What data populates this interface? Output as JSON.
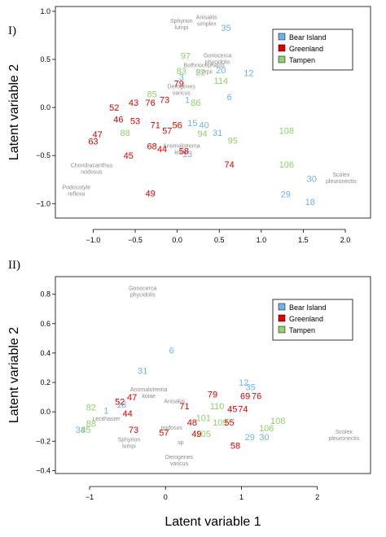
{
  "colors": {
    "Bear Island": "#6fb3e6",
    "Greenland": "#e00000",
    "Tampen": "#8fd16a",
    "species": "#8c8c8c"
  },
  "chart_data": [
    {
      "type": "scatter",
      "panel_label": "I)",
      "ylabel": "Latent variable 2",
      "xlabel": "",
      "xlim": [
        -1.45,
        2.3
      ],
      "ylim": [
        -1.15,
        1.05
      ],
      "xticks": [
        "−1.0",
        "−0.5",
        "0.0",
        "0.5",
        "1.0",
        "1.5",
        "2.0"
      ],
      "xtick_values": [
        -1.0,
        -0.5,
        0.0,
        0.5,
        1.0,
        1.5,
        2.0
      ],
      "yticks": [
        "−1.0",
        "−0.5",
        "0.0",
        "0.5",
        "1.0"
      ],
      "ytick_values": [
        -1.0,
        -0.5,
        0.0,
        0.5,
        1.0
      ],
      "legend": {
        "position": "top-right",
        "entries": [
          "Bear Island",
          "Greenland",
          "Tampen"
        ]
      },
      "points": [
        {
          "label": "35",
          "x": 0.58,
          "y": 0.83,
          "group": "Bear Island"
        },
        {
          "label": "12",
          "x": 0.85,
          "y": 0.36,
          "group": "Bear Island"
        },
        {
          "label": "6",
          "x": 0.62,
          "y": 0.11,
          "group": "Bear Island"
        },
        {
          "label": "15",
          "x": 0.18,
          "y": -0.16,
          "group": "Bear Island"
        },
        {
          "label": "40",
          "x": 0.32,
          "y": -0.18,
          "group": "Bear Island"
        },
        {
          "label": "31",
          "x": 0.48,
          "y": -0.26,
          "group": "Bear Island"
        },
        {
          "label": "30",
          "x": 1.6,
          "y": -0.74,
          "group": "Bear Island"
        },
        {
          "label": "29",
          "x": 1.29,
          "y": -0.9,
          "group": "Bear Island"
        },
        {
          "label": "18",
          "x": 1.58,
          "y": -0.98,
          "group": "Bear Island"
        },
        {
          "label": "20",
          "x": 0.52,
          "y": 0.39,
          "group": "Bear Island"
        },
        {
          "label": "3",
          "x": 0.05,
          "y": 0.32,
          "group": "Bear Island"
        },
        {
          "label": "1",
          "x": 0.12,
          "y": 0.08,
          "group": "Bear Island"
        },
        {
          "label": "13",
          "x": 0.12,
          "y": -0.48,
          "group": "Bear Island"
        },
        {
          "label": "108",
          "x": 1.3,
          "y": -0.24,
          "group": "Tampen"
        },
        {
          "label": "106",
          "x": 1.3,
          "y": -0.59,
          "group": "Tampen"
        },
        {
          "label": "95",
          "x": 0.66,
          "y": -0.34,
          "group": "Tampen"
        },
        {
          "label": "94",
          "x": 0.3,
          "y": -0.27,
          "group": "Tampen"
        },
        {
          "label": "114",
          "x": 0.52,
          "y": 0.28,
          "group": "Tampen"
        },
        {
          "label": "97",
          "x": 0.1,
          "y": 0.54,
          "group": "Tampen"
        },
        {
          "label": "83",
          "x": 0.05,
          "y": 0.38,
          "group": "Tampen"
        },
        {
          "label": "86",
          "x": 0.22,
          "y": 0.05,
          "group": "Tampen"
        },
        {
          "label": "88",
          "x": -0.62,
          "y": -0.26,
          "group": "Tampen"
        },
        {
          "label": "22",
          "x": 0.28,
          "y": 0.37,
          "group": "Tampen"
        },
        {
          "label": "85",
          "x": -0.3,
          "y": 0.14,
          "group": "Tampen"
        },
        {
          "label": "74",
          "x": 0.62,
          "y": -0.59,
          "group": "Greenland"
        },
        {
          "label": "49",
          "x": -0.32,
          "y": -0.89,
          "group": "Greenland"
        },
        {
          "label": "45",
          "x": -0.58,
          "y": -0.5,
          "group": "Greenland"
        },
        {
          "label": "63",
          "x": -1.0,
          "y": -0.35,
          "group": "Greenland"
        },
        {
          "label": "47",
          "x": -0.95,
          "y": -0.28,
          "group": "Greenland"
        },
        {
          "label": "68",
          "x": -0.3,
          "y": -0.4,
          "group": "Greenland"
        },
        {
          "label": "44",
          "x": -0.18,
          "y": -0.43,
          "group": "Greenland"
        },
        {
          "label": "58",
          "x": 0.08,
          "y": -0.45,
          "group": "Greenland"
        },
        {
          "label": "52",
          "x": -0.75,
          "y": 0.0,
          "group": "Greenland"
        },
        {
          "label": "43",
          "x": -0.52,
          "y": 0.05,
          "group": "Greenland"
        },
        {
          "label": "76",
          "x": -0.32,
          "y": 0.05,
          "group": "Greenland"
        },
        {
          "label": "79",
          "x": 0.02,
          "y": 0.25,
          "group": "Greenland"
        },
        {
          "label": "57",
          "x": -0.12,
          "y": -0.24,
          "group": "Greenland"
        },
        {
          "label": "56",
          "x": 0.0,
          "y": -0.18,
          "group": "Greenland"
        },
        {
          "label": "53",
          "x": -0.5,
          "y": -0.14,
          "group": "Greenland"
        },
        {
          "label": "46",
          "x": -0.7,
          "y": -0.12,
          "group": "Greenland"
        },
        {
          "label": "71",
          "x": -0.26,
          "y": -0.18,
          "group": "Greenland"
        },
        {
          "label": "73",
          "x": -0.15,
          "y": 0.08,
          "group": "Greenland"
        }
      ],
      "species_labels": [
        {
          "text": "Anisakis\nsimplex",
          "x": 0.35,
          "y": 0.92
        },
        {
          "text": "Sphyrion\nlumpi",
          "x": 0.05,
          "y": 0.88
        },
        {
          "text": "Gonocerca\nphycidolis",
          "x": 0.48,
          "y": 0.52
        },
        {
          "text": "Bothriocephalus\nscorpii",
          "x": 0.32,
          "y": 0.42
        },
        {
          "text": "Chondracanthus\nnodosus",
          "x": -1.02,
          "y": -0.62
        },
        {
          "text": "Podocotyle\nreflexa",
          "x": -1.2,
          "y": -0.85
        },
        {
          "text": "Scolex\npleuronectis",
          "x": 1.95,
          "y": -0.72
        },
        {
          "text": "Anomalotrema\nkoiae",
          "x": 0.05,
          "y": -0.42
        },
        {
          "text": "Derogenes\nvaricus",
          "x": 0.05,
          "y": 0.2
        }
      ]
    },
    {
      "type": "scatter",
      "panel_label": "II)",
      "ylabel": "Latent variable 2",
      "xlabel": "Latent variable 1",
      "xlim": [
        -1.45,
        2.7
      ],
      "ylim": [
        -0.42,
        0.92
      ],
      "xticks": [
        "−1",
        "0",
        "1",
        "2"
      ],
      "xtick_values": [
        -1,
        0,
        1,
        2
      ],
      "yticks": [
        "−0.4",
        "−0.2",
        "0.0",
        "0.2",
        "0.4",
        "0.6",
        "0.8"
      ],
      "ytick_values": [
        -0.4,
        -0.2,
        0.0,
        0.2,
        0.4,
        0.6,
        0.8
      ],
      "legend": {
        "position": "top-right",
        "entries": [
          "Bear Island",
          "Greenland",
          "Tampen"
        ]
      },
      "points": [
        {
          "label": "6",
          "x": 0.08,
          "y": 0.42,
          "group": "Bear Island"
        },
        {
          "label": "31",
          "x": -0.3,
          "y": 0.28,
          "group": "Bear Island"
        },
        {
          "label": "12",
          "x": 1.03,
          "y": 0.2,
          "group": "Bear Island"
        },
        {
          "label": "35",
          "x": 1.12,
          "y": 0.17,
          "group": "Bear Island"
        },
        {
          "label": "29",
          "x": 1.11,
          "y": -0.17,
          "group": "Bear Island"
        },
        {
          "label": "30",
          "x": 1.3,
          "y": -0.17,
          "group": "Bear Island"
        },
        {
          "label": "34",
          "x": -1.12,
          "y": -0.12,
          "group": "Bear Island"
        },
        {
          "label": "1",
          "x": -0.78,
          "y": 0.01,
          "group": "Bear Island"
        },
        {
          "label": "18",
          "x": -0.58,
          "y": 0.05,
          "group": "Bear Island"
        },
        {
          "label": "82",
          "x": -0.98,
          "y": 0.03,
          "group": "Tampen"
        },
        {
          "label": "88",
          "x": -0.98,
          "y": -0.08,
          "group": "Tampen"
        },
        {
          "label": "85",
          "x": -1.05,
          "y": -0.12,
          "group": "Tampen"
        },
        {
          "label": "108",
          "x": 1.48,
          "y": -0.06,
          "group": "Tampen"
        },
        {
          "label": "106",
          "x": 1.33,
          "y": -0.11,
          "group": "Tampen"
        },
        {
          "label": "109",
          "x": 0.72,
          "y": -0.07,
          "group": "Tampen"
        },
        {
          "label": "110",
          "x": 0.68,
          "y": 0.04,
          "group": "Tampen"
        },
        {
          "label": "101",
          "x": 0.5,
          "y": -0.04,
          "group": "Tampen"
        },
        {
          "label": "105",
          "x": 0.5,
          "y": -0.15,
          "group": "Tampen"
        },
        {
          "label": "58",
          "x": 0.92,
          "y": -0.23,
          "group": "Greenland"
        },
        {
          "label": "79",
          "x": 0.62,
          "y": 0.12,
          "group": "Greenland"
        },
        {
          "label": "69",
          "x": 1.05,
          "y": 0.11,
          "group": "Greenland"
        },
        {
          "label": "76",
          "x": 1.2,
          "y": 0.11,
          "group": "Greenland"
        },
        {
          "label": "45",
          "x": 0.88,
          "y": 0.02,
          "group": "Greenland"
        },
        {
          "label": "74",
          "x": 1.02,
          "y": 0.02,
          "group": "Greenland"
        },
        {
          "label": "55",
          "x": 0.84,
          "y": -0.07,
          "group": "Greenland"
        },
        {
          "label": "49",
          "x": 0.41,
          "y": -0.15,
          "group": "Greenland"
        },
        {
          "label": "47",
          "x": -0.44,
          "y": 0.1,
          "group": "Greenland"
        },
        {
          "label": "71",
          "x": 0.25,
          "y": 0.04,
          "group": "Greenland"
        },
        {
          "label": "73",
          "x": -0.42,
          "y": -0.12,
          "group": "Greenland"
        },
        {
          "label": "57",
          "x": -0.02,
          "y": -0.14,
          "group": "Greenland"
        },
        {
          "label": "52",
          "x": -0.6,
          "y": 0.07,
          "group": "Greenland"
        },
        {
          "label": "44",
          "x": -0.5,
          "y": -0.01,
          "group": "Greenland"
        },
        {
          "label": "48",
          "x": 0.35,
          "y": -0.07,
          "group": "Greenland"
        }
      ],
      "species_labels": [
        {
          "text": "Gonocerca\nphycidolis",
          "x": -0.3,
          "y": 0.83
        },
        {
          "text": "Anomalotrema\nkoiae",
          "x": -0.22,
          "y": 0.14
        },
        {
          "text": "Anisakis",
          "x": 0.12,
          "y": 0.06
        },
        {
          "text": "Sphyrion\nlumpi",
          "x": -0.48,
          "y": -0.2
        },
        {
          "text": "Lecithaster",
          "x": -0.78,
          "y": -0.06
        },
        {
          "text": "nodosus",
          "x": 0.08,
          "y": -0.12
        },
        {
          "text": "sp",
          "x": 0.2,
          "y": -0.22
        },
        {
          "text": "Derogenes\nvaricus",
          "x": 0.18,
          "y": -0.32
        },
        {
          "text": "Scolex\npleuronectis",
          "x": 2.35,
          "y": -0.15
        }
      ]
    }
  ]
}
